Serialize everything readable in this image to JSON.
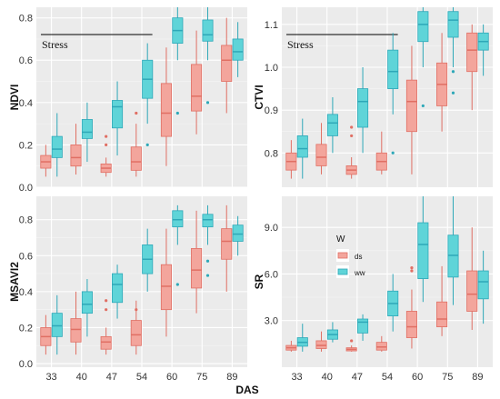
{
  "xlabel": "DAS",
  "legend": {
    "title": "W",
    "entries": [
      {
        "label": "ds",
        "fill": "#f3a59c",
        "stroke": "#e06f64"
      },
      {
        "label": "ww",
        "fill": "#5fd4d8",
        "stroke": "#2ea8b8"
      }
    ]
  },
  "chart_data": [
    {
      "type": "box",
      "ylabel": "NDVI",
      "annotation": "Stress",
      "stress_span": [
        "33",
        "54"
      ],
      "ylim": [
        0,
        0.85
      ],
      "yticks": [
        0.0,
        0.2,
        0.4,
        0.6,
        0.8
      ],
      "tick_labels": [
        "0.0",
        "0.2",
        "0.4",
        "0.6",
        "0.8"
      ],
      "categories": [
        "33",
        "40",
        "47",
        "54",
        "60",
        "75",
        "89"
      ],
      "series": [
        {
          "name": "ds",
          "boxes": [
            {
              "min": 0.05,
              "q1": 0.09,
              "median": 0.12,
              "q3": 0.15,
              "max": 0.2,
              "outliers": []
            },
            {
              "min": 0.06,
              "q1": 0.1,
              "median": 0.14,
              "q3": 0.2,
              "max": 0.3,
              "outliers": []
            },
            {
              "min": 0.05,
              "q1": 0.07,
              "median": 0.09,
              "q3": 0.11,
              "max": 0.14,
              "outliers": [
                0.2,
                0.24
              ]
            },
            {
              "min": 0.05,
              "q1": 0.08,
              "median": 0.12,
              "q3": 0.19,
              "max": 0.3,
              "outliers": [
                0.35
              ]
            },
            {
              "min": 0.1,
              "q1": 0.24,
              "median": 0.35,
              "q3": 0.49,
              "max": 0.66,
              "outliers": []
            },
            {
              "min": 0.25,
              "q1": 0.36,
              "median": 0.43,
              "q3": 0.58,
              "max": 0.74,
              "outliers": []
            },
            {
              "min": 0.35,
              "q1": 0.5,
              "median": 0.6,
              "q3": 0.67,
              "max": 0.8,
              "outliers": []
            }
          ]
        },
        {
          "name": "ww",
          "boxes": [
            {
              "min": 0.05,
              "q1": 0.14,
              "median": 0.18,
              "q3": 0.24,
              "max": 0.35,
              "outliers": []
            },
            {
              "min": 0.12,
              "q1": 0.23,
              "median": 0.26,
              "q3": 0.32,
              "max": 0.4,
              "outliers": []
            },
            {
              "min": 0.15,
              "q1": 0.28,
              "median": 0.38,
              "q3": 0.41,
              "max": 0.5,
              "outliers": []
            },
            {
              "min": 0.3,
              "q1": 0.42,
              "median": 0.51,
              "q3": 0.6,
              "max": 0.68,
              "outliers": [
                0.2
              ]
            },
            {
              "min": 0.6,
              "q1": 0.68,
              "median": 0.74,
              "q3": 0.8,
              "max": 0.85,
              "outliers": [
                0.35
              ]
            },
            {
              "min": 0.6,
              "q1": 0.69,
              "median": 0.72,
              "q3": 0.79,
              "max": 0.85,
              "outliers": [
                0.4
              ]
            },
            {
              "min": 0.52,
              "q1": 0.6,
              "median": 0.64,
              "q3": 0.7,
              "max": 0.78,
              "outliers": []
            }
          ]
        }
      ]
    },
    {
      "type": "box",
      "ylabel": "CTVI",
      "annotation": "Stress",
      "stress_span": [
        "33",
        "54"
      ],
      "ylim": [
        0.72,
        1.14
      ],
      "yticks": [
        0.8,
        0.9,
        1.0,
        1.1
      ],
      "tick_labels": [
        "0.8",
        "0.9",
        "1.0",
        "1.1"
      ],
      "categories": [
        "33",
        "40",
        "47",
        "54",
        "60",
        "75",
        "89"
      ],
      "series": [
        {
          "name": "ds",
          "boxes": [
            {
              "min": 0.74,
              "q1": 0.76,
              "median": 0.78,
              "q3": 0.8,
              "max": 0.83,
              "outliers": []
            },
            {
              "min": 0.75,
              "q1": 0.77,
              "median": 0.79,
              "q3": 0.82,
              "max": 0.87,
              "outliers": []
            },
            {
              "min": 0.74,
              "q1": 0.75,
              "median": 0.76,
              "q3": 0.77,
              "max": 0.79,
              "outliers": [
                0.84,
                0.86
              ]
            },
            {
              "min": 0.75,
              "q1": 0.76,
              "median": 0.78,
              "q3": 0.8,
              "max": 0.85,
              "outliers": []
            },
            {
              "min": 0.75,
              "q1": 0.85,
              "median": 0.92,
              "q3": 0.97,
              "max": 1.05,
              "outliers": []
            },
            {
              "min": 0.85,
              "q1": 0.91,
              "median": 0.96,
              "q3": 1.01,
              "max": 1.08,
              "outliers": []
            },
            {
              "min": 0.9,
              "q1": 0.99,
              "median": 1.04,
              "q3": 1.08,
              "max": 1.1,
              "outliers": []
            }
          ]
        },
        {
          "name": "ww",
          "boxes": [
            {
              "min": 0.74,
              "q1": 0.79,
              "median": 0.81,
              "q3": 0.84,
              "max": 0.88,
              "outliers": []
            },
            {
              "min": 0.8,
              "q1": 0.84,
              "median": 0.87,
              "q3": 0.89,
              "max": 0.93,
              "outliers": []
            },
            {
              "min": 0.8,
              "q1": 0.86,
              "median": 0.92,
              "q3": 0.95,
              "max": 1.0,
              "outliers": []
            },
            {
              "min": 0.89,
              "q1": 0.95,
              "median": 0.99,
              "q3": 1.04,
              "max": 1.08,
              "outliers": [
                0.8
              ]
            },
            {
              "min": 1.0,
              "q1": 1.06,
              "median": 1.1,
              "q3": 1.13,
              "max": 1.14,
              "outliers": [
                0.91
              ]
            },
            {
              "min": 1.0,
              "q1": 1.07,
              "median": 1.11,
              "q3": 1.13,
              "max": 1.14,
              "outliers": [
                0.99,
                0.94
              ]
            },
            {
              "min": 0.98,
              "q1": 1.04,
              "median": 1.06,
              "q3": 1.08,
              "max": 1.1,
              "outliers": []
            }
          ]
        }
      ]
    },
    {
      "type": "box",
      "ylabel": "MSAVI2",
      "ylim": [
        -0.02,
        0.93
      ],
      "yticks": [
        0.0,
        0.2,
        0.4,
        0.6,
        0.8
      ],
      "tick_labels": [
        "0.0",
        "0.2",
        "0.4",
        "0.6",
        "0.8"
      ],
      "categories": [
        "33",
        "40",
        "47",
        "54",
        "60",
        "75",
        "89"
      ],
      "series": [
        {
          "name": "ds",
          "boxes": [
            {
              "min": 0.05,
              "q1": 0.1,
              "median": 0.15,
              "q3": 0.2,
              "max": 0.27,
              "outliers": []
            },
            {
              "min": 0.05,
              "q1": 0.12,
              "median": 0.19,
              "q3": 0.25,
              "max": 0.4,
              "outliers": []
            },
            {
              "min": 0.05,
              "q1": 0.08,
              "median": 0.12,
              "q3": 0.15,
              "max": 0.2,
              "outliers": [
                0.3,
                0.35
              ]
            },
            {
              "min": 0.05,
              "q1": 0.1,
              "median": 0.16,
              "q3": 0.24,
              "max": 0.35,
              "outliers": [
                0.3
              ]
            },
            {
              "min": 0.15,
              "q1": 0.3,
              "median": 0.43,
              "q3": 0.55,
              "max": 0.75,
              "outliers": []
            },
            {
              "min": 0.28,
              "q1": 0.42,
              "median": 0.52,
              "q3": 0.64,
              "max": 0.85,
              "outliers": []
            },
            {
              "min": 0.4,
              "q1": 0.58,
              "median": 0.68,
              "q3": 0.75,
              "max": 0.88,
              "outliers": []
            }
          ]
        },
        {
          "name": "ww",
          "boxes": [
            {
              "min": 0.05,
              "q1": 0.15,
              "median": 0.21,
              "q3": 0.28,
              "max": 0.38,
              "outliers": []
            },
            {
              "min": 0.15,
              "q1": 0.28,
              "median": 0.33,
              "q3": 0.4,
              "max": 0.47,
              "outliers": []
            },
            {
              "min": 0.25,
              "q1": 0.34,
              "median": 0.44,
              "q3": 0.5,
              "max": 0.55,
              "outliers": []
            },
            {
              "min": 0.4,
              "q1": 0.5,
              "median": 0.58,
              "q3": 0.66,
              "max": 0.75,
              "outliers": []
            },
            {
              "min": 0.66,
              "q1": 0.76,
              "median": 0.8,
              "q3": 0.85,
              "max": 0.88,
              "outliers": [
                0.44
              ]
            },
            {
              "min": 0.66,
              "q1": 0.76,
              "median": 0.8,
              "q3": 0.83,
              "max": 0.88,
              "outliers": [
                0.57,
                0.49
              ]
            },
            {
              "min": 0.6,
              "q1": 0.68,
              "median": 0.72,
              "q3": 0.77,
              "max": 0.82,
              "outliers": []
            }
          ]
        }
      ]
    },
    {
      "type": "box",
      "ylabel": "SR",
      "ylim": [
        0.0,
        11.0
      ],
      "yticks": [
        3.0,
        6.0,
        9.0
      ],
      "tick_labels": [
        "3.0",
        "6.0",
        "9.0"
      ],
      "categories": [
        "33",
        "40",
        "47",
        "54",
        "60",
        "75",
        "89"
      ],
      "series": [
        {
          "name": "ds",
          "boxes": [
            {
              "min": 1.0,
              "q1": 1.1,
              "median": 1.25,
              "q3": 1.4,
              "max": 1.7,
              "outliers": []
            },
            {
              "min": 1.0,
              "q1": 1.2,
              "median": 1.4,
              "q3": 1.7,
              "max": 2.3,
              "outliers": []
            },
            {
              "min": 1.0,
              "q1": 1.05,
              "median": 1.15,
              "q3": 1.25,
              "max": 1.4,
              "outliers": [
                1.7
              ]
            },
            {
              "min": 1.0,
              "q1": 1.1,
              "median": 1.3,
              "q3": 1.6,
              "max": 2.0,
              "outliers": []
            },
            {
              "min": 1.2,
              "q1": 1.9,
              "median": 2.6,
              "q3": 3.6,
              "max": 5.0,
              "outliers": [
                6.2,
                6.4
              ]
            },
            {
              "min": 2.0,
              "q1": 2.6,
              "median": 3.1,
              "q3": 4.2,
              "max": 6.5,
              "outliers": []
            },
            {
              "min": 2.4,
              "q1": 3.6,
              "median": 4.7,
              "q3": 6.2,
              "max": 9.0,
              "outliers": []
            }
          ]
        },
        {
          "name": "ww",
          "boxes": [
            {
              "min": 1.0,
              "q1": 1.35,
              "median": 1.6,
              "q3": 1.9,
              "max": 2.8,
              "outliers": []
            },
            {
              "min": 1.6,
              "q1": 1.8,
              "median": 2.1,
              "q3": 2.4,
              "max": 2.9,
              "outliers": []
            },
            {
              "min": 1.7,
              "q1": 2.2,
              "median": 2.9,
              "q3": 3.1,
              "max": 3.4,
              "outliers": []
            },
            {
              "min": 2.3,
              "q1": 3.3,
              "median": 4.1,
              "q3": 4.9,
              "max": 6.0,
              "outliers": []
            },
            {
              "min": 4.2,
              "q1": 5.7,
              "median": 7.9,
              "q3": 9.3,
              "max": 11.0,
              "outliers": []
            },
            {
              "min": 4.0,
              "q1": 5.8,
              "median": 7.2,
              "q3": 8.5,
              "max": 11.0,
              "outliers": []
            },
            {
              "min": 2.8,
              "q1": 4.4,
              "median": 5.5,
              "q3": 6.2,
              "max": 7.5,
              "outliers": []
            }
          ]
        }
      ]
    }
  ]
}
